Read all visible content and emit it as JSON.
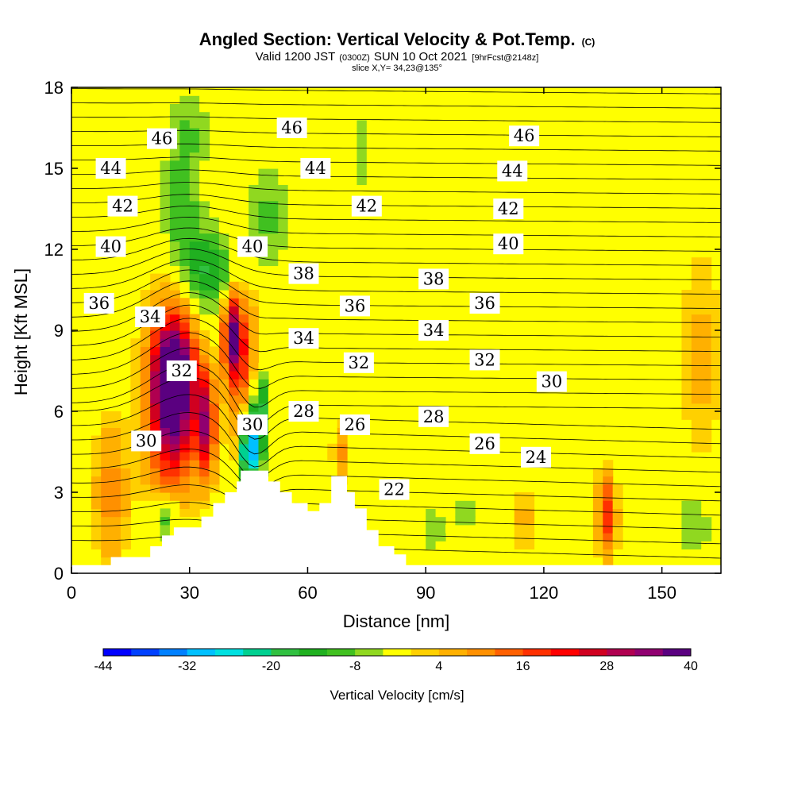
{
  "title": {
    "main": "Angled Section: Vertical Velocity & Pot.Temp.",
    "copyright": "(C)",
    "valid_prefix": "Valid 1200 JST",
    "valid_zulu": "(0300Z)",
    "valid_date": "SUN 10 Oct 2021",
    "forecast": "[9hrFcst@2148z]",
    "slice": "slice X,Y= 34,23@135°"
  },
  "chart_data": {
    "type": "heatmap",
    "xlabel": "Distance [nm]",
    "ylabel": "Height [Kft MSL]",
    "xlim": [
      0,
      165
    ],
    "ylim": [
      0,
      18
    ],
    "x_ticks": [
      0,
      30,
      60,
      90,
      120,
      150
    ],
    "y_ticks": [
      0,
      3,
      6,
      9,
      12,
      15,
      18
    ],
    "colorbar": {
      "label": "Vertical Velocity [cm/s]",
      "min": -44,
      "max": 40,
      "step": 4,
      "tick_values": [
        -44,
        -32,
        -20,
        -8,
        4,
        16,
        28,
        40
      ],
      "colors": [
        "#0000ff",
        "#0040ff",
        "#0080ff",
        "#00c0ff",
        "#00e0e0",
        "#00d090",
        "#30c040",
        "#20b020",
        "#40c020",
        "#90d820",
        "#ffff00",
        "#ffd000",
        "#ffb000",
        "#ff9000",
        "#ff6000",
        "#ff3000",
        "#ff0000",
        "#d00020",
        "#b00050",
        "#900070",
        "#5a0080"
      ]
    },
    "terrain_profile": [
      [
        0,
        0.3
      ],
      [
        10,
        0.3
      ],
      [
        10,
        0.6
      ],
      [
        20,
        0.6
      ],
      [
        20,
        1.0
      ],
      [
        23,
        1.0
      ],
      [
        23,
        1.4
      ],
      [
        26,
        1.4
      ],
      [
        26,
        1.7
      ],
      [
        33,
        1.7
      ],
      [
        33,
        2.1
      ],
      [
        36,
        2.1
      ],
      [
        36,
        2.6
      ],
      [
        39,
        2.6
      ],
      [
        39,
        3.0
      ],
      [
        42,
        3.0
      ],
      [
        42,
        3.4
      ],
      [
        43,
        3.4
      ],
      [
        43,
        3.8
      ],
      [
        50,
        3.8
      ],
      [
        50,
        3.4
      ],
      [
        53,
        3.4
      ],
      [
        53,
        3.0
      ],
      [
        56,
        3.0
      ],
      [
        56,
        2.6
      ],
      [
        60,
        2.6
      ],
      [
        60,
        2.3
      ],
      [
        63,
        2.3
      ],
      [
        63,
        2.6
      ],
      [
        66,
        2.6
      ],
      [
        66,
        3.6
      ],
      [
        70,
        3.6
      ],
      [
        70,
        3.0
      ],
      [
        72,
        3.0
      ],
      [
        72,
        2.4
      ],
      [
        75,
        2.4
      ],
      [
        75,
        1.6
      ],
      [
        78,
        1.6
      ],
      [
        78,
        1.0
      ],
      [
        82,
        1.0
      ],
      [
        82,
        0.7
      ],
      [
        85,
        0.7
      ],
      [
        85,
        0.3
      ],
      [
        165,
        0.3
      ]
    ],
    "pot_temp_contour_labels": [
      {
        "value": "46",
        "x": 23,
        "y": 16.1
      },
      {
        "value": "46",
        "x": 56,
        "y": 16.5
      },
      {
        "value": "46",
        "x": 115,
        "y": 16.2
      },
      {
        "value": "44",
        "x": 10,
        "y": 15.0
      },
      {
        "value": "44",
        "x": 62,
        "y": 15.0
      },
      {
        "value": "44",
        "x": 112,
        "y": 14.9
      },
      {
        "value": "42",
        "x": 13,
        "y": 13.6
      },
      {
        "value": "42",
        "x": 75,
        "y": 13.6
      },
      {
        "value": "42",
        "x": 111,
        "y": 13.5
      },
      {
        "value": "40",
        "x": 10,
        "y": 12.1
      },
      {
        "value": "40",
        "x": 46,
        "y": 12.1
      },
      {
        "value": "40",
        "x": 111,
        "y": 12.2
      },
      {
        "value": "38",
        "x": 59,
        "y": 11.1
      },
      {
        "value": "38",
        "x": 92,
        "y": 10.9
      },
      {
        "value": "36",
        "x": 7,
        "y": 10.0
      },
      {
        "value": "36",
        "x": 72,
        "y": 9.9
      },
      {
        "value": "36",
        "x": 105,
        "y": 10.0
      },
      {
        "value": "34",
        "x": 20,
        "y": 9.5
      },
      {
        "value": "34",
        "x": 59,
        "y": 8.7
      },
      {
        "value": "34",
        "x": 92,
        "y": 9.0
      },
      {
        "value": "32",
        "x": 28,
        "y": 7.5
      },
      {
        "value": "32",
        "x": 73,
        "y": 7.8
      },
      {
        "value": "32",
        "x": 105,
        "y": 7.9
      },
      {
        "value": "30",
        "x": 19,
        "y": 4.9
      },
      {
        "value": "30",
        "x": 46,
        "y": 5.5
      },
      {
        "value": "30",
        "x": 122,
        "y": 7.1
      },
      {
        "value": "28",
        "x": 59,
        "y": 6.0
      },
      {
        "value": "28",
        "x": 92,
        "y": 5.8
      },
      {
        "value": "26",
        "x": 72,
        "y": 5.5
      },
      {
        "value": "26",
        "x": 105,
        "y": 4.8
      },
      {
        "value": "24",
        "x": 118,
        "y": 4.3
      },
      {
        "value": "22",
        "x": 82,
        "y": 3.1
      }
    ]
  }
}
